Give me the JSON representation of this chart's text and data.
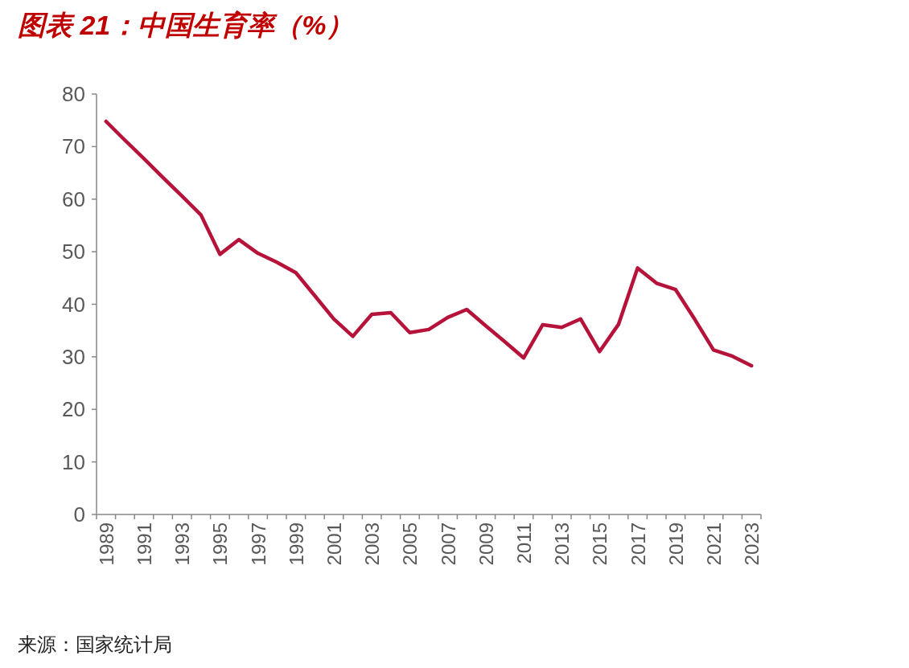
{
  "chart_data": {
    "type": "line",
    "title": "图表 21：中国生育率（%）",
    "categories": [
      "1989",
      null,
      "1991",
      null,
      "1993",
      null,
      "1995",
      null,
      "1997",
      null,
      "1999",
      null,
      "2001",
      null,
      "2003",
      null,
      "2005",
      null,
      "2007",
      null,
      "2009",
      null,
      "2011",
      null,
      "2013",
      null,
      "2015",
      null,
      "2017",
      null,
      "2019",
      null,
      "2021",
      null,
      "2023"
    ],
    "series": [
      {
        "color": "#b5133a",
        "values": [
          74.8,
          71.2,
          67.7,
          64.1,
          60.6,
          57.0,
          49.5,
          52.3,
          49.7,
          48.0,
          46.0,
          41.6,
          37.2,
          33.9,
          38.1,
          38.4,
          34.6,
          35.2,
          37.5,
          39.0,
          35.9,
          32.9,
          29.8,
          36.1,
          35.6,
          37.2,
          31.0,
          36.2,
          46.9,
          44.0,
          42.8,
          37.2,
          31.3,
          30.1,
          28.3
        ]
      }
    ],
    "ylim": [
      0,
      80
    ],
    "yticks": [
      0,
      10,
      20,
      30,
      40,
      50,
      60,
      70,
      80
    ],
    "grid": false,
    "marker": "none",
    "line_style": "solid",
    "annotations": [
      "来源：国家统计局"
    ]
  }
}
